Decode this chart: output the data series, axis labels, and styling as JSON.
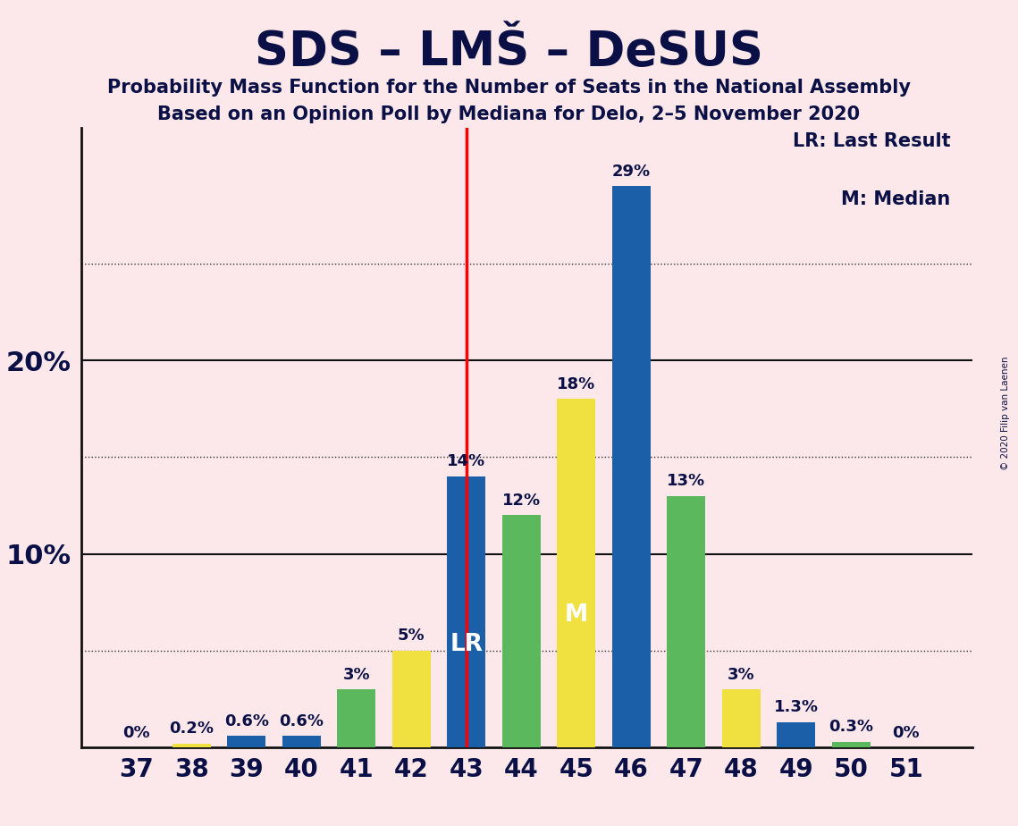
{
  "title": "SDS – LMŠ – DeSUS",
  "subtitle1": "Probability Mass Function for the Number of Seats in the National Assembly",
  "subtitle2": "Based on an Opinion Poll by Mediana for Delo, 2–5 November 2020",
  "copyright": "© 2020 Filip van Laenen",
  "seats": [
    37,
    38,
    39,
    40,
    41,
    42,
    43,
    44,
    45,
    46,
    47,
    48,
    49,
    50,
    51
  ],
  "values": [
    0.0,
    0.2,
    0.6,
    0.6,
    3.0,
    5.0,
    14.0,
    12.0,
    18.0,
    29.0,
    13.0,
    3.0,
    1.3,
    0.3,
    0.0
  ],
  "labels": [
    "0%",
    "0.2%",
    "0.6%",
    "0.6%",
    "3%",
    "5%",
    "14%",
    "12%",
    "18%",
    "29%",
    "13%",
    "3%",
    "1.3%",
    "0.3%",
    "0%"
  ],
  "colors": [
    "#5cb85c",
    "#f0e040",
    "#1a5fa8",
    "#1a5fa8",
    "#5cb85c",
    "#f0e040",
    "#1a5fa8",
    "#5cb85c",
    "#f0e040",
    "#1a5fa8",
    "#5cb85c",
    "#f0e040",
    "#1a5fa8",
    "#5cb85c",
    "#5cb85c"
  ],
  "lr_seat": 43,
  "median_seat": 45,
  "lr_line_color": "#ff0000",
  "background_color": "#fce8ea",
  "ylim_max": 32,
  "solid_grid": [
    10,
    20
  ],
  "dotted_grid": [
    5,
    15,
    25
  ],
  "ytick_positions": [
    10,
    20
  ],
  "ytick_labels": [
    "10%",
    "20%"
  ],
  "annotation_color": "#0a1045",
  "bar_label_inside_color": "#ffffff",
  "inside_label_seats": [
    43,
    45
  ],
  "inside_labels": [
    "LR",
    "M"
  ],
  "legend_text1": "LR: Last Result",
  "legend_text2": "M: Median",
  "bar_width": 0.7,
  "xlim": [
    36.0,
    52.2
  ]
}
